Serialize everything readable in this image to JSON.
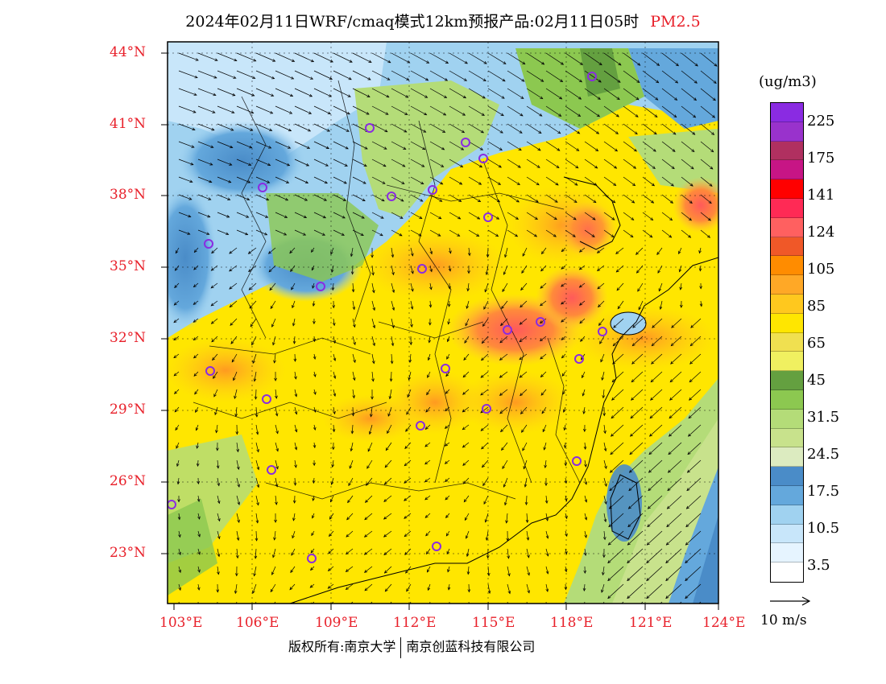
{
  "title": {
    "main": "2024年02月11日WRF/cmaq模式12km预报产品:02月11日05时",
    "variable": "PM2.5"
  },
  "lat_labels": [
    "44°N",
    "41°N",
    "38°N",
    "35°N",
    "32°N",
    "29°N",
    "26°N",
    "23°N"
  ],
  "lon_labels": [
    "103°E",
    "106°E",
    "109°E",
    "112°E",
    "115°E",
    "118°E",
    "121°E",
    "124°E"
  ],
  "colorbar": {
    "unit": "(ug/m3)",
    "levels": [
      "225",
      "175",
      "141",
      "124",
      "105",
      "85",
      "65",
      "45",
      "31.5",
      "24.5",
      "17.5",
      "10.5",
      "3.5"
    ],
    "colors": [
      "#8a2be2",
      "#9932cc",
      "#b03060",
      "#c71585",
      "#ff0000",
      "#ff2a55",
      "#ff6060",
      "#f05828",
      "#ff8c00",
      "#ffa826",
      "#ffc81e",
      "#ffe600",
      "#f0e050",
      "#f0f060",
      "#64a040",
      "#8cc850",
      "#b4dc78",
      "#c8e28c",
      "#dcebc0",
      "#4a8cc8",
      "#64a8dc",
      "#a0d2f0",
      "#c8e6fa",
      "#e6f4ff",
      "#ffffff"
    ]
  },
  "vector_reference": {
    "label": "10 m/s"
  },
  "footer": {
    "left": "版权所有:南京大学",
    "right": "南京创蓝科技有限公司"
  }
}
